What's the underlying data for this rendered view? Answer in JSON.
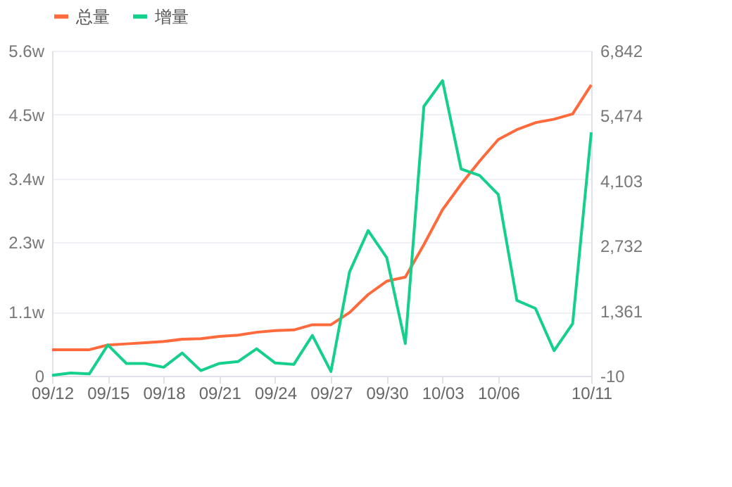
{
  "chart_data": {
    "type": "line",
    "categories": [
      "09/12",
      null,
      null,
      "09/15",
      null,
      null,
      "09/18",
      null,
      null,
      "09/21",
      null,
      null,
      "09/24",
      null,
      null,
      "09/27",
      null,
      null,
      "09/30",
      null,
      null,
      "10/03",
      null,
      null,
      "10/06",
      null,
      null,
      null,
      null,
      "10/11"
    ],
    "series": [
      {
        "name": "总量",
        "color": "#ff6a3d",
        "values": [
          0.45,
          0.45,
          0.45,
          0.53,
          0.55,
          0.57,
          0.59,
          0.63,
          0.64,
          0.68,
          0.7,
          0.75,
          0.78,
          0.79,
          0.88,
          0.88,
          1.09,
          1.4,
          1.63,
          1.7,
          2.26,
          2.86,
          3.3,
          3.7,
          4.07,
          4.24,
          4.36,
          4.42,
          4.51,
          5.01
        ]
      },
      {
        "name": "增量",
        "color": "#14d08c",
        "axis": "y2",
        "values": [
          0,
          50,
          30,
          640,
          250,
          250,
          170,
          470,
          100,
          250,
          290,
          560,
          260,
          230,
          840,
          80,
          2180,
          3050,
          2480,
          670,
          5670,
          6210,
          4350,
          4210,
          3810,
          1580,
          1410,
          520,
          1090,
          5120
        ]
      }
    ],
    "ylim": [
      0,
      5.6
    ],
    "yticks": [
      0,
      {
        "value": 1.1,
        "label": "1.1w"
      },
      {
        "value": 2.3,
        "label": "2.3w"
      },
      {
        "value": 3.4,
        "label": "3.4w"
      },
      {
        "value": 4.5,
        "label": "4.5w"
      },
      {
        "value": 5.6,
        "label": "5.6w"
      }
    ],
    "y2lim": [
      -10,
      6842
    ],
    "y2ticks": [
      {
        "value": -10,
        "label": "-10"
      },
      {
        "value": 1361,
        "label": "1,361"
      },
      {
        "value": 2732,
        "label": "2,732"
      },
      {
        "value": 4103,
        "label": "4,103"
      },
      {
        "value": 5474,
        "label": "5,474"
      },
      {
        "value": 6842,
        "label": "6,842"
      }
    ],
    "grid": "y",
    "legend": "top left",
    "marker": "none",
    "line_style": "solid"
  }
}
